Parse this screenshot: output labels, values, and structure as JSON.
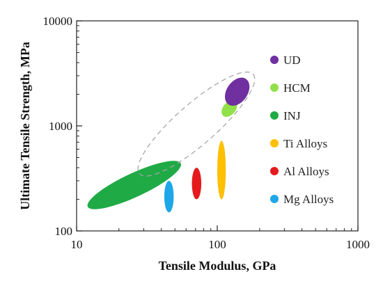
{
  "chart_data": {
    "type": "scatter",
    "title": "",
    "xlabel": "Tensile Modulus, GPa",
    "ylabel": "Ultimate Tensile Strength, MPa",
    "xscale": "log",
    "yscale": "log",
    "xlim": [
      10,
      1000
    ],
    "ylim": [
      100,
      10000
    ],
    "x_ticks": [
      10,
      100,
      1000
    ],
    "y_ticks": [
      100,
      1000,
      10000
    ],
    "x_tick_labels": [
      "10",
      "100",
      "1000"
    ],
    "y_tick_labels": [
      "100",
      "1000",
      "10000"
    ],
    "grid": false,
    "legend_position": "right",
    "series": [
      {
        "name": "UD",
        "color": "#7030a0",
        "modulus_gpa": [
          120,
          160
        ],
        "strength_mpa": [
          1600,
          2800
        ]
      },
      {
        "name": "HCM",
        "color": "#92e04a",
        "modulus_gpa": [
          110,
          135
        ],
        "strength_mpa": [
          1250,
          1700
        ]
      },
      {
        "name": "INJ",
        "color": "#1faa46",
        "modulus_gpa": [
          12,
          55
        ],
        "strength_mpa": [
          170,
          440
        ]
      },
      {
        "name": "Ti Alloys",
        "color": "#ffc000",
        "modulus_gpa": [
          100,
          115
        ],
        "strength_mpa": [
          200,
          720
        ]
      },
      {
        "name": "Al Alloys",
        "color": "#e41a1c",
        "modulus_gpa": [
          66,
          77
        ],
        "strength_mpa": [
          200,
          400
        ]
      },
      {
        "name": "Mg Alloys",
        "color": "#1ea7e8",
        "modulus_gpa": [
          42,
          49
        ],
        "strength_mpa": [
          150,
          300
        ]
      }
    ],
    "envelope": {
      "style": "dashed",
      "color": "#a6a6a6",
      "modulus_gpa": [
        28,
        180
      ],
      "strength_mpa": [
        350,
        3100
      ]
    }
  }
}
